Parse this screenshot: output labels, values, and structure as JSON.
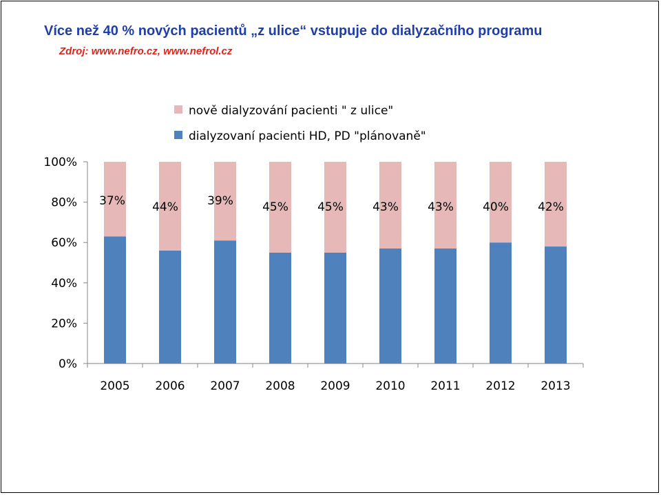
{
  "slide": {
    "title": "Více než 40 % nových pacientů „z ulice“ vstupuje do dialyzačního programu",
    "source": "Zdroj: www.nefro.cz, www.nefrol.cz"
  },
  "chart_data": {
    "type": "bar",
    "stacked": true,
    "percent_stacked": true,
    "categories": [
      "2005",
      "2006",
      "2007",
      "2008",
      "2009",
      "2010",
      "2011",
      "2012",
      "2013"
    ],
    "series": [
      {
        "name": "dialyzovaní pacienti HD, PD \"plánovaně\"",
        "color": "#4f81bd",
        "values": [
          63,
          56,
          61,
          55,
          55,
          57,
          57,
          60,
          58
        ]
      },
      {
        "name": "nově dialyzování pacienti \" z ulice\"",
        "color": "#e6b9b8",
        "values": [
          37,
          44,
          39,
          45,
          45,
          43,
          43,
          40,
          42
        ]
      }
    ],
    "data_labels": [
      "37%",
      "44%",
      "39%",
      "45%",
      "45%",
      "43%",
      "43%",
      "40%",
      "42%"
    ],
    "y_ticks": [
      "0%",
      "20%",
      "40%",
      "60%",
      "80%",
      "100%"
    ],
    "ylim": [
      0,
      100
    ],
    "legend_position": "top",
    "legend_order": [
      1,
      0
    ],
    "grid": false
  }
}
